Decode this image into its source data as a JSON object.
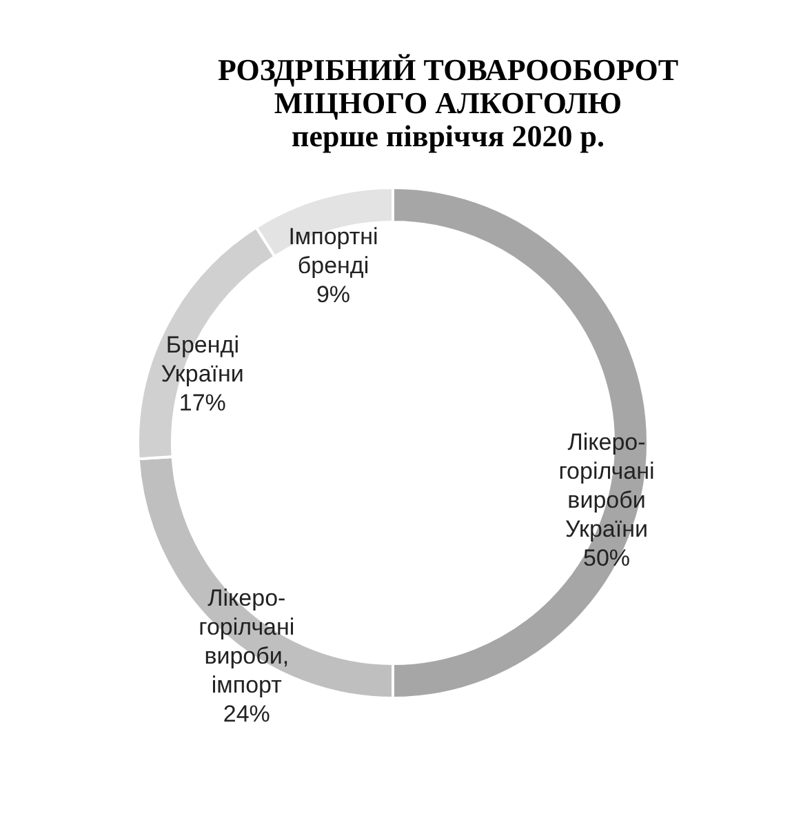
{
  "chart_data": {
    "type": "donut",
    "title": "РОЗДРІБНИЙ ТОВАРООБОРОТ\nМІЦНОГО АЛКОГОЛЮ",
    "subtitle": "перше півріччя 2020 р.",
    "categories": [
      "Лікеро-\nгорілчані\nвироби\nУкраїни",
      "Лікеро-\nгорілчані\nвироби,\nімпорт",
      "Бренді\nУкраїни",
      "Імпортні\nбренді"
    ],
    "values": [
      50,
      24,
      17,
      9
    ],
    "value_labels": [
      "50%",
      "24%",
      "17%",
      "9%"
    ],
    "colors": [
      "#a6a6a6",
      "#bfbfbf",
      "#d0d0d0",
      "#e3e3e3"
    ],
    "legend": false
  }
}
